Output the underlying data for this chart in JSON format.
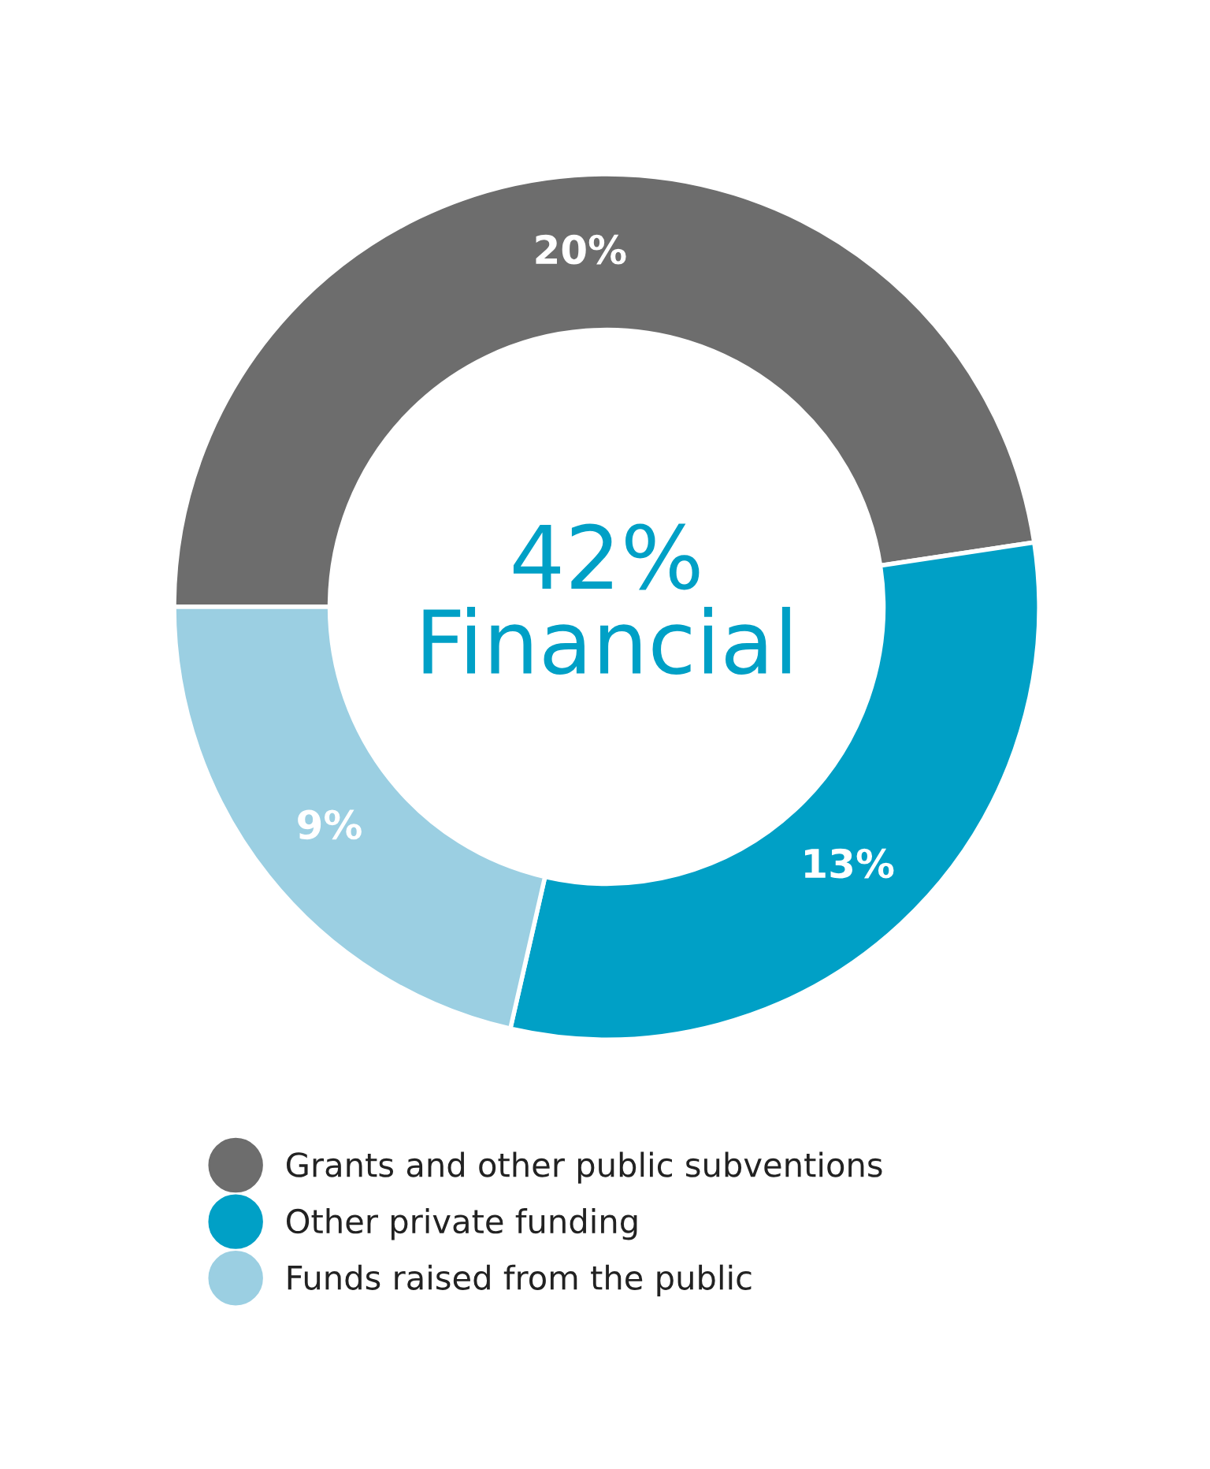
{
  "chart_data": {
    "type": "donut",
    "categories": [
      "Grants and other public subventions",
      "Other private funding",
      "Funds raised from the public"
    ],
    "values": [
      20,
      13,
      9
    ],
    "colors": [
      "#6d6d6d",
      "#00a0c6",
      "#9bcfe2"
    ],
    "value_labels": [
      "20%",
      "13%",
      "9%"
    ],
    "annotations": [
      "42%\nFinancial"
    ],
    "legend": "bottom"
  }
}
